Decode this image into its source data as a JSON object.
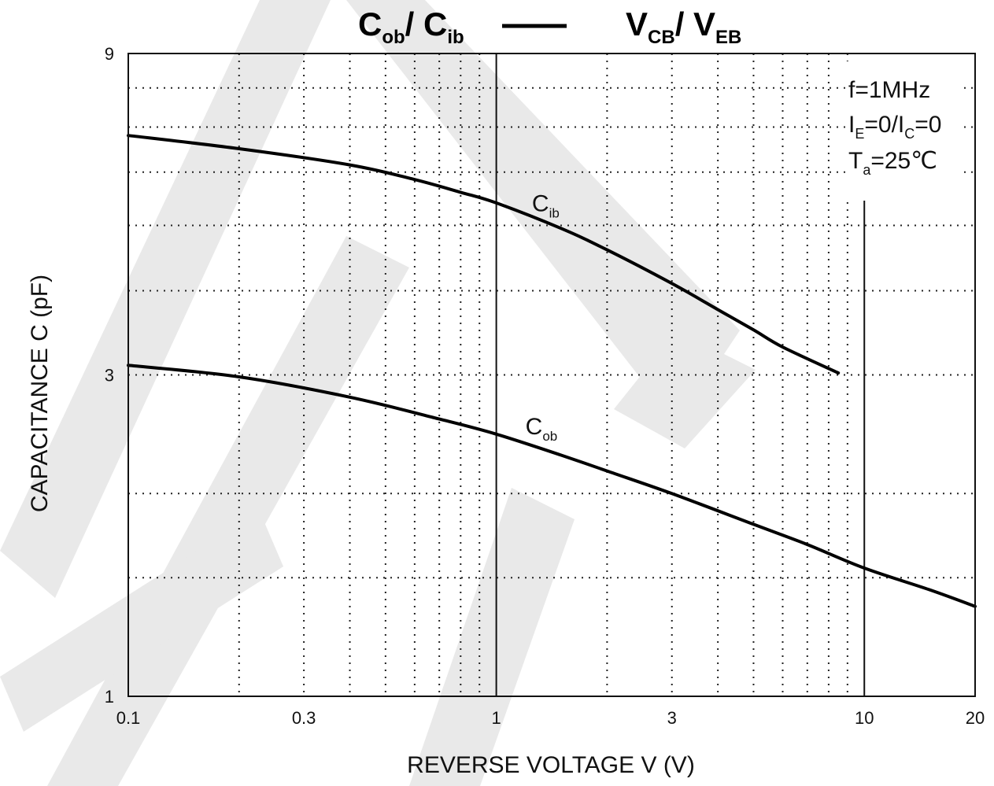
{
  "chart_data": {
    "type": "line",
    "title": {
      "left": {
        "main": "C",
        "sub": "ob",
        "sep": "/ ",
        "main2": "C",
        "sub2": "ib"
      },
      "right": {
        "main": "V",
        "sub": "CB",
        "sep": "/ ",
        "main2": "V",
        "sub2": "EB"
      }
    },
    "xlabel": "REVERSE VOLTAGE    V    (V)",
    "ylabel": "CAPACITANCE    C    (pF)",
    "x_scale": "log",
    "y_scale": "log",
    "xlim": [
      0.1,
      20
    ],
    "ylim": [
      1,
      9
    ],
    "x_ticks": [
      {
        "value": 0.1,
        "label": "0.1"
      },
      {
        "value": 0.3,
        "label": "0.3"
      },
      {
        "value": 1,
        "label": "1"
      },
      {
        "value": 3,
        "label": "3"
      },
      {
        "value": 10,
        "label": "10"
      },
      {
        "value": 20,
        "label": "20"
      }
    ],
    "y_ticks": [
      {
        "value": 1,
        "label": "1"
      },
      {
        "value": 3,
        "label": "3"
      },
      {
        "value": 9,
        "label": "9"
      }
    ],
    "grid": true,
    "conditions": {
      "freq": "f=1MHz",
      "bias": {
        "a": "I",
        "a_sub": "E",
        "mid": "=0/I",
        "b_sub": "C",
        "end": "=0"
      },
      "temp": {
        "a": "T",
        "a_sub": "a",
        "end": "=25℃"
      }
    },
    "series": [
      {
        "label_main": "C",
        "label_sub": "ib",
        "label_at": {
          "x": 1.25,
          "y": 5.25
        },
        "points": [
          [
            0.1,
            6.8
          ],
          [
            0.2,
            6.5
          ],
          [
            0.4,
            6.15
          ],
          [
            0.6,
            5.85
          ],
          [
            0.8,
            5.6
          ],
          [
            1,
            5.4
          ],
          [
            1.5,
            4.95
          ],
          [
            2,
            4.6
          ],
          [
            3,
            4.1
          ],
          [
            4,
            3.75
          ],
          [
            5,
            3.5
          ],
          [
            6,
            3.3
          ],
          [
            8.5,
            3.02
          ]
        ]
      },
      {
        "label_main": "C",
        "label_sub": "ob",
        "label_at": {
          "x": 1.2,
          "y": 2.45
        },
        "points": [
          [
            0.1,
            3.1
          ],
          [
            0.2,
            2.98
          ],
          [
            0.4,
            2.78
          ],
          [
            0.7,
            2.58
          ],
          [
            1,
            2.45
          ],
          [
            1.5,
            2.28
          ],
          [
            2,
            2.16
          ],
          [
            3,
            2.0
          ],
          [
            5,
            1.8
          ],
          [
            7,
            1.68
          ],
          [
            10,
            1.55
          ],
          [
            15,
            1.44
          ],
          [
            20,
            1.36
          ]
        ]
      }
    ]
  }
}
